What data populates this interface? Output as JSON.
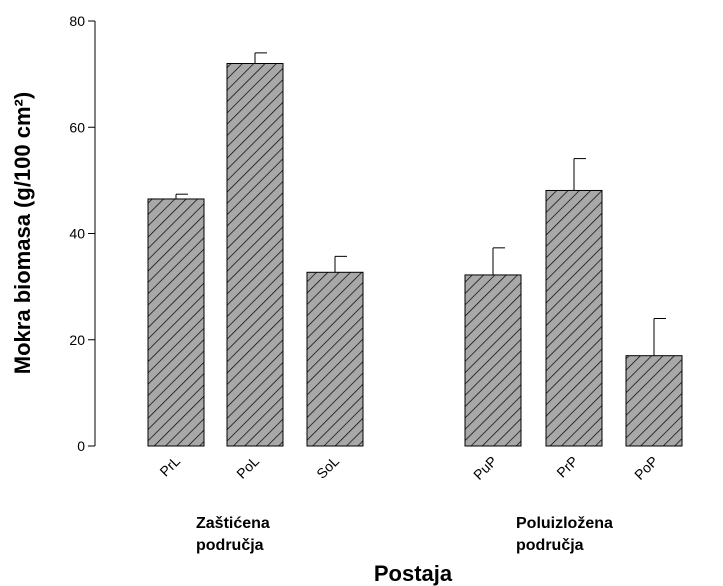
{
  "chart_data": {
    "type": "bar",
    "ylabel": "Mokra biomasa (g/100 cm²)",
    "xlabel": "Postaja",
    "ylim": [
      0,
      80
    ],
    "yticks": [
      0,
      20,
      40,
      60,
      80
    ],
    "categories": [
      "PrL",
      "PoL",
      "SoL",
      "PuP",
      "PrP",
      "PoP"
    ],
    "values": [
      46.5,
      72,
      32.7,
      32.2,
      48.1,
      17
    ],
    "errors": [
      0.9,
      2,
      3,
      5.1,
      6,
      7
    ],
    "groups": [
      {
        "label_lines": [
          "Zaštićena",
          "područja"
        ],
        "categories": [
          "PrL",
          "PoL",
          "SoL"
        ]
      },
      {
        "label_lines": [
          "Poluizložena",
          "područja"
        ],
        "categories": [
          "PuP",
          "PrP",
          "PoP"
        ]
      }
    ],
    "bar_fill": "#a8a8a8",
    "hatch": "diagonal",
    "grid": false,
    "legend": "none"
  }
}
